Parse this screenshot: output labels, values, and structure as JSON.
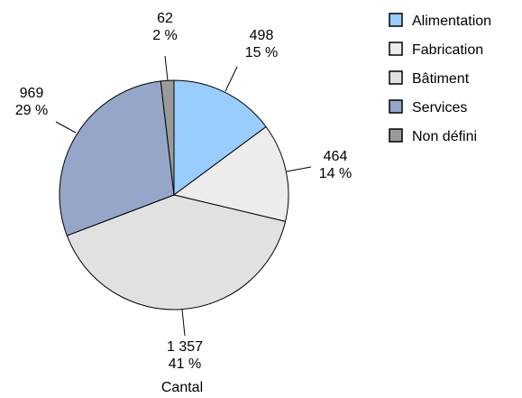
{
  "chart_data": {
    "type": "pie",
    "categories": [
      "Alimentation",
      "Fabrication",
      "Bâtiment",
      "Services",
      "Non défini"
    ],
    "values": [
      498,
      464,
      1357,
      969,
      62
    ],
    "value_labels": [
      "498",
      "464",
      "1 357",
      "969",
      "62"
    ],
    "percent_labels": [
      "15 %",
      "14 %",
      "41 %",
      "29 %",
      "2 %"
    ],
    "colors": [
      "#99ccff",
      "#ececec",
      "#e1e1e1",
      "#96a6c8",
      "#9a9a9a"
    ],
    "legend_position": "top-right",
    "xlabel": "Cantal"
  }
}
